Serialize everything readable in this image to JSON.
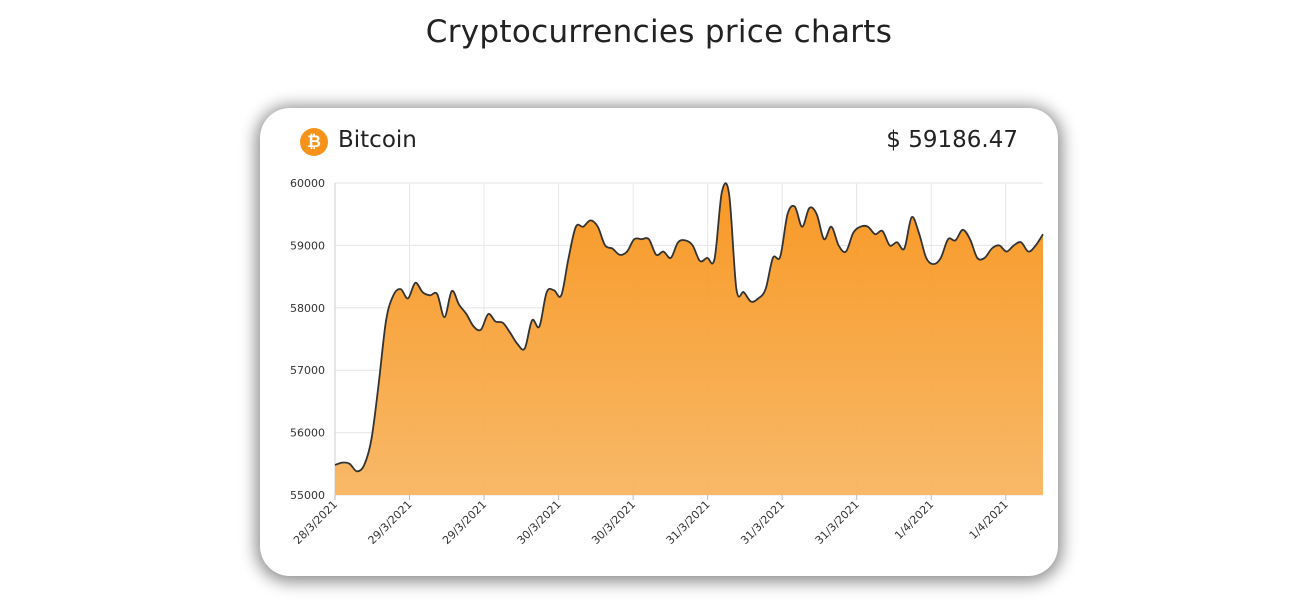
{
  "page": {
    "title": "Cryptocurrencies price charts"
  },
  "card": {
    "coin_name": "Bitcoin",
    "coin_symbol": "₿",
    "price": "$ 59186.47",
    "icon": "bitcoin-icon",
    "accent_color": "#f7931a"
  },
  "chart_data": {
    "type": "area",
    "title": "",
    "xlabel": "",
    "ylabel": "",
    "ylim": [
      55000,
      60000
    ],
    "yticks": [
      "60000",
      "59000",
      "58000",
      "57000",
      "56000",
      "55000"
    ],
    "xticks": [
      "28/3/2021",
      "29/3/2021",
      "29/3/2021",
      "30/3/2021",
      "30/3/2021",
      "31/3/2021",
      "31/3/2021",
      "31/3/2021",
      "1/4/2021",
      "1/4/2021"
    ],
    "grid": true,
    "fill_top_color": "#f7931a",
    "fill_bottom_color": "#f8b560",
    "line_color": "#333333",
    "series": [
      {
        "values": [
          55480,
          55520,
          55500,
          55380,
          55480,
          55900,
          56800,
          57800,
          58200,
          58300,
          58150,
          58400,
          58250,
          58200,
          58220,
          57850,
          58270,
          58050,
          57900,
          57700,
          57650,
          57900,
          57780,
          57760,
          57600,
          57420,
          57350,
          57800,
          57700,
          58250,
          58280,
          58200,
          58800,
          59300,
          59300,
          59400,
          59300,
          59000,
          58950,
          58850,
          58900,
          59100,
          59100,
          59100,
          58850,
          58900,
          58800,
          59050,
          59080,
          59000,
          58750,
          58800,
          58780,
          59850,
          59820,
          58300,
          58250,
          58100,
          58150,
          58300,
          58800,
          58820,
          59500,
          59620,
          59300,
          59600,
          59500,
          59100,
          59300,
          59000,
          58900,
          59200,
          59300,
          59300,
          59180,
          59230,
          59000,
          59050,
          58950,
          59450,
          59200,
          58800,
          58700,
          58800,
          59100,
          59080,
          59250,
          59100,
          58800,
          58800,
          58950,
          59000,
          58900,
          59000,
          59050,
          58900,
          59000,
          59180
        ]
      }
    ]
  }
}
